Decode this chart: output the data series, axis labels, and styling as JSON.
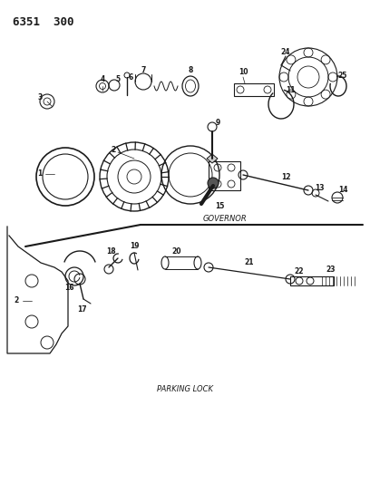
{
  "title": "6351  300",
  "governor_label": "GOVERNOR",
  "parking_label": "PARKING LOCK",
  "bg_color": "#ffffff",
  "line_color": "#1a1a1a",
  "fig_w": 4.08,
  "fig_h": 5.33,
  "dpi": 100
}
